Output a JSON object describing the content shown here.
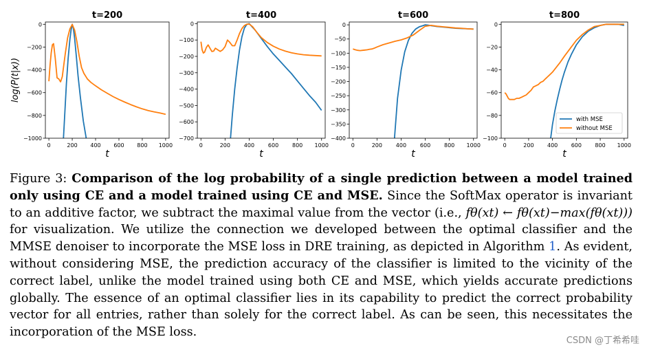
{
  "chart_data": [
    {
      "type": "line",
      "title": "t=200",
      "xlabel": "t",
      "ylabel": "log(P(t|x))",
      "xlim": [
        -30,
        1030
      ],
      "ylim": [
        -1000,
        20
      ],
      "xticks": [
        0,
        200,
        400,
        600,
        800,
        1000
      ],
      "yticks": [
        0,
        -200,
        -400,
        -600,
        -800,
        -1000
      ],
      "series": [
        {
          "name": "with MSE",
          "color": "#1f77b4",
          "x": [
            125,
            150,
            165,
            180,
            190,
            200,
            210,
            220,
            235,
            250,
            270,
            295,
            320
          ],
          "y": [
            -1000,
            -520,
            -300,
            -130,
            -50,
            0,
            -40,
            -120,
            -280,
            -450,
            -640,
            -850,
            -1000
          ]
        },
        {
          "name": "without MSE",
          "color": "#ff7f0e",
          "x": [
            0,
            10,
            20,
            30,
            40,
            55,
            70,
            85,
            100,
            115,
            125,
            140,
            160,
            180,
            200,
            220,
            240,
            260,
            280,
            300,
            330,
            360,
            400,
            450,
            500,
            550,
            600,
            650,
            700,
            750,
            800,
            850,
            900,
            950,
            1000
          ],
          "y": [
            -500,
            -360,
            -250,
            -180,
            -170,
            -300,
            -470,
            -480,
            -505,
            -460,
            -380,
            -260,
            -120,
            -40,
            -2,
            -50,
            -150,
            -280,
            -380,
            -430,
            -480,
            -510,
            -540,
            -575,
            -605,
            -635,
            -660,
            -683,
            -705,
            -725,
            -742,
            -757,
            -768,
            -778,
            -790
          ]
        }
      ]
    },
    {
      "type": "line",
      "title": "t=400",
      "xlabel": "t",
      "xlim": [
        -30,
        1030
      ],
      "ylim": [
        -700,
        10
      ],
      "xticks": [
        0,
        200,
        400,
        600,
        800,
        1000
      ],
      "yticks": [
        0,
        -100,
        -200,
        -300,
        -400,
        -500,
        -600,
        -700
      ],
      "series": [
        {
          "name": "with MSE",
          "color": "#1f77b4",
          "x": [
            245,
            260,
            280,
            300,
            320,
            340,
            360,
            380,
            400,
            450,
            500,
            550,
            600,
            650,
            700,
            750,
            800,
            850,
            900,
            950,
            1000
          ],
          "y": [
            -700,
            -560,
            -400,
            -270,
            -160,
            -80,
            -28,
            -5,
            0,
            -40,
            -90,
            -140,
            -185,
            -225,
            -265,
            -305,
            -350,
            -395,
            -440,
            -480,
            -530
          ]
        },
        {
          "name": "without MSE",
          "color": "#ff7f0e",
          "x": [
            0,
            10,
            20,
            30,
            45,
            60,
            75,
            90,
            105,
            120,
            140,
            160,
            180,
            200,
            220,
            240,
            260,
            280,
            300,
            320,
            340,
            360,
            380,
            400,
            430,
            460,
            500,
            550,
            600,
            650,
            700,
            750,
            800,
            850,
            900,
            950,
            1000
          ],
          "y": [
            -110,
            -160,
            -180,
            -175,
            -145,
            -130,
            -150,
            -170,
            -168,
            -150,
            -160,
            -170,
            -160,
            -140,
            -100,
            -115,
            -135,
            -135,
            -100,
            -60,
            -30,
            -12,
            -4,
            -2,
            -20,
            -50,
            -85,
            -115,
            -138,
            -155,
            -168,
            -178,
            -185,
            -190,
            -193,
            -195,
            -197
          ]
        }
      ]
    },
    {
      "type": "line",
      "title": "t=600",
      "xlabel": "t",
      "xlim": [
        -30,
        1030
      ],
      "ylim": [
        -400,
        10
      ],
      "xticks": [
        0,
        200,
        400,
        600,
        800,
        1000
      ],
      "yticks": [
        0,
        -50,
        -100,
        -150,
        -200,
        -250,
        -300,
        -350,
        -400
      ],
      "series": [
        {
          "name": "with MSE",
          "color": "#1f77b4",
          "x": [
            345,
            370,
            400,
            430,
            460,
            490,
            520,
            550,
            580,
            600,
            620,
            650,
            700,
            750,
            800,
            850,
            900,
            950,
            1000
          ],
          "y": [
            -400,
            -260,
            -160,
            -95,
            -55,
            -30,
            -15,
            -7,
            -3,
            0,
            -1,
            -3,
            -6,
            -8,
            -10,
            -12,
            -13,
            -14,
            -15
          ]
        },
        {
          "name": "without MSE",
          "color": "#ff7f0e",
          "x": [
            0,
            20,
            40,
            60,
            80,
            100,
            120,
            140,
            160,
            180,
            200,
            250,
            300,
            350,
            400,
            450,
            500,
            550,
            600,
            650,
            700,
            750,
            800,
            850,
            900,
            950,
            1000
          ],
          "y": [
            -85,
            -88,
            -90,
            -91,
            -90,
            -89,
            -88,
            -86,
            -85,
            -82,
            -78,
            -70,
            -64,
            -58,
            -53,
            -46,
            -36,
            -20,
            -5,
            -2,
            -5,
            -7,
            -9,
            -11,
            -12,
            -14,
            -15
          ]
        }
      ]
    },
    {
      "type": "line",
      "title": "t=800",
      "xlabel": "t",
      "xlim": [
        -30,
        1030
      ],
      "ylim": [
        -100,
        2
      ],
      "xticks": [
        0,
        200,
        400,
        600,
        800,
        1000
      ],
      "yticks": [
        0,
        -20,
        -40,
        -60,
        -80,
        -100
      ],
      "legend_position": "lower-right",
      "series": [
        {
          "name": "with MSE",
          "color": "#1f77b4",
          "x": [
            385,
            400,
            420,
            440,
            460,
            480,
            500,
            530,
            560,
            600,
            650,
            700,
            750,
            800,
            850,
            900,
            950,
            1000
          ],
          "y": [
            -100,
            -88,
            -76,
            -66,
            -57,
            -49,
            -42,
            -33,
            -26,
            -18,
            -11,
            -6,
            -3,
            -1,
            0,
            0,
            0,
            -1
          ]
        },
        {
          "name": "without MSE",
          "color": "#ff7f0e",
          "x": [
            0,
            10,
            20,
            30,
            40,
            60,
            80,
            100,
            120,
            140,
            160,
            180,
            200,
            220,
            240,
            260,
            280,
            300,
            320,
            340,
            360,
            380,
            400,
            430,
            460,
            500,
            550,
            600,
            650,
            700,
            750,
            800,
            850,
            900,
            950,
            1000
          ],
          "y": [
            -60,
            -61,
            -63,
            -65,
            -66,
            -66,
            -66,
            -65,
            -65,
            -64,
            -63,
            -62,
            -60,
            -58,
            -55,
            -54,
            -53,
            -51,
            -50,
            -48,
            -46,
            -44,
            -42,
            -38,
            -34,
            -28,
            -21,
            -14,
            -9,
            -5,
            -2,
            -1,
            0,
            0,
            0,
            0
          ]
        }
      ]
    }
  ],
  "caption": {
    "fig_label": "Figure 3:",
    "bold_text": "Comparison of the log probability of a single prediction between a model trained only using CE and a model trained using CE and MSE.",
    "text_part1": "Since the SoftMax operator is invariant to an additive factor, we subtract the maximal value from the vector (i.e.,",
    "math": "fθ(xt) ← fθ(xt)−max(fθ(xt)))",
    "text_part2": "for visualization. We utilize the connection we developed between the optimal classifier and the MMSE denoiser to incorporate the MSE loss in DRE training, as depicted in Algorithm",
    "algorithm_ref": "1",
    "text_part3": ". As evident, without considering MSE, the prediction accuracy of the classifier is limited to the vicinity of the correct label, unlike the model trained using both CE and MSE, which yields accurate predictions globally. The essence of an optimal classifier lies in its capability to predict the correct probability vector for all entries, rather than solely for the correct label. As can be seen, this necessitates the incorporation of the MSE loss."
  },
  "watermark": "CSDN @丁希希哇"
}
